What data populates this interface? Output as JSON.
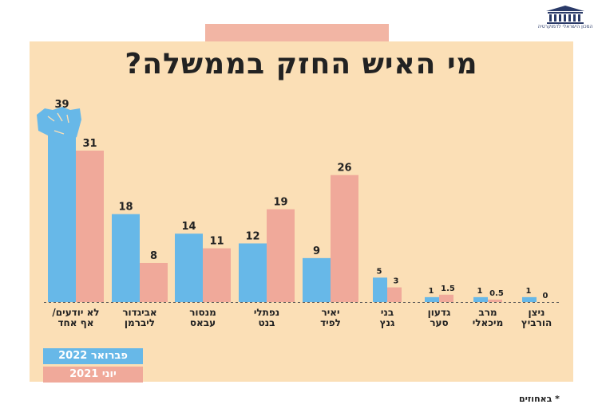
{
  "title": "מי האיש החזק בממשלה?",
  "logo_text": "המכון הישראלי לדמוקרטיה",
  "footnote": "* באחוזים",
  "legend": {
    "feb": "פברואר 2022",
    "jun": "יוני 2021"
  },
  "colors": {
    "feb": "#67b8e8",
    "jun": "#f0a99a",
    "background": "#fbdfb6",
    "text": "#222222"
  },
  "chart_data": {
    "type": "bar",
    "title": "מי האיש החזק בממשלה?",
    "categories": [
      [
        "לא יודעים/",
        "אף אחד"
      ],
      [
        "אביגדור",
        "ליברמן"
      ],
      [
        "מנסור",
        "עבאס"
      ],
      [
        "נפתלי",
        "בנט"
      ],
      [
        "יאיר",
        "לפיד"
      ],
      [
        "בני",
        "גנץ"
      ],
      [
        "גדעון",
        "סער"
      ],
      [
        "מרב",
        "מיכאלי"
      ],
      [
        "ניצן",
        "הורביץ"
      ]
    ],
    "series": [
      {
        "name": "פברואר 2022",
        "values": [
          39,
          18,
          14,
          12,
          9,
          5,
          1,
          1,
          1
        ],
        "labels": [
          "39",
          "18",
          "14",
          "12",
          "9",
          "5",
          "1",
          "1",
          "1"
        ]
      },
      {
        "name": "יוני 2021",
        "values": [
          31,
          8,
          11,
          19,
          26,
          3,
          1.5,
          0.5,
          0
        ],
        "labels": [
          "31",
          "8",
          "11",
          "19",
          "26",
          "3",
          "1.5",
          "0.5",
          "0"
        ]
      }
    ],
    "ylim": [
      0,
      39
    ],
    "unit_note": "* באחוזים",
    "grid": false,
    "legend_position": "bottom-left",
    "icon": "raised-fist-icon"
  }
}
